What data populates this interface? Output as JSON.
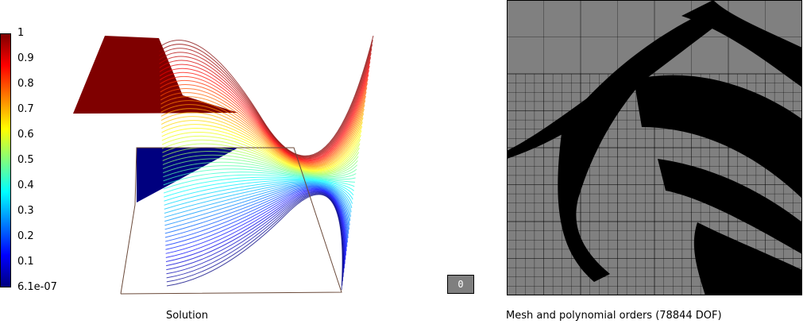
{
  "colorbar": {
    "labels": [
      "1",
      "0.9",
      "0.8",
      "0.7",
      "0.6",
      "0.5",
      "0.4",
      "0.3",
      "0.2",
      "0.1",
      "6.1e-07"
    ],
    "colors": [
      "#00007f",
      "#0000ff",
      "#007fff",
      "#00ffff",
      "#7fff7f",
      "#ffff00",
      "#ff7f00",
      "#ff0000",
      "#7f0000"
    ]
  },
  "solution_panel": {
    "caption": "Solution"
  },
  "frame_button": {
    "label": "0"
  },
  "mesh_panel": {
    "caption": "Mesh and polynomial orders (78844 DOF)",
    "colors": {
      "fine": "#000000",
      "coarse": "#808080",
      "grid": "#000000"
    }
  }
}
